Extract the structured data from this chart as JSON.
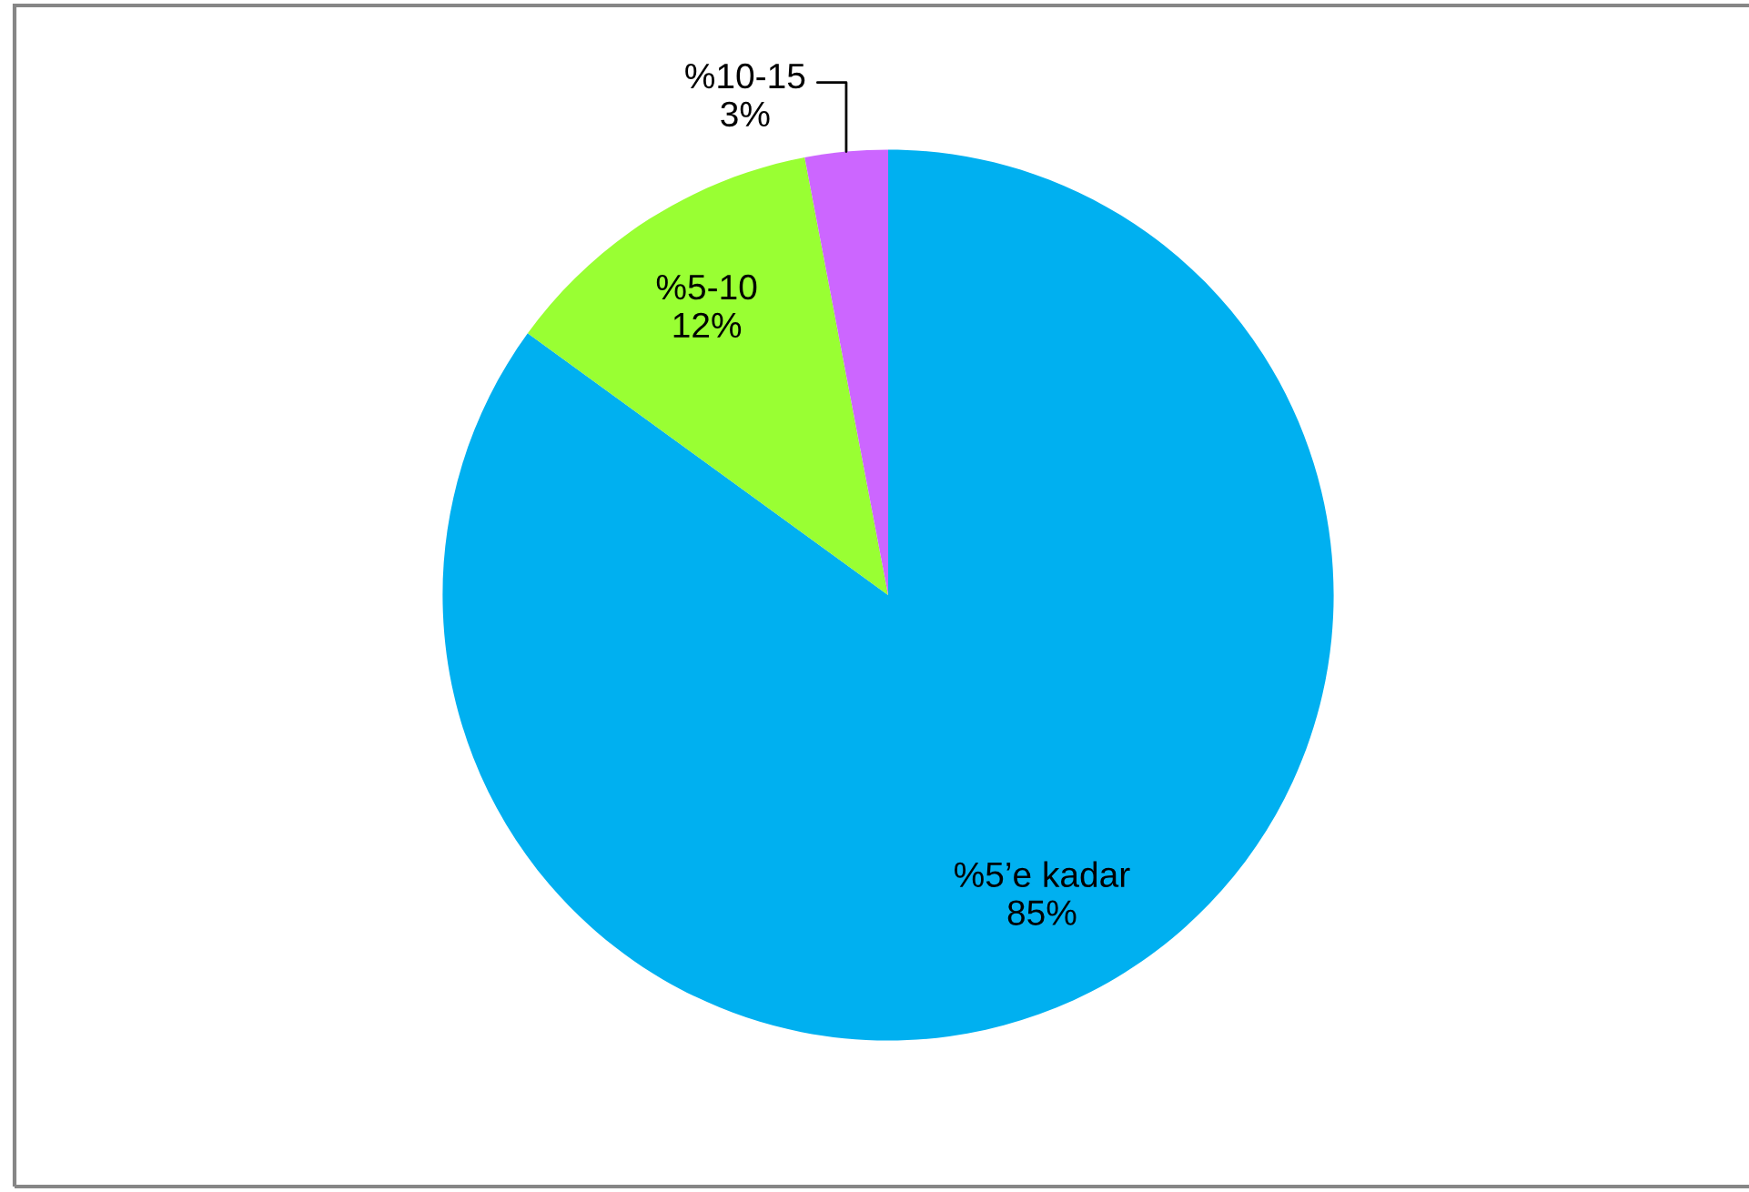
{
  "chart_data": {
    "type": "pie",
    "categories": [
      "%5’e kadar",
      "%5-10",
      "%10-15"
    ],
    "values": [
      85,
      12,
      3
    ],
    "colors": [
      "#00b0f0",
      "#99ff33",
      "#cc66ff"
    ],
    "value_labels": [
      "85%",
      "12%",
      "3%"
    ]
  }
}
